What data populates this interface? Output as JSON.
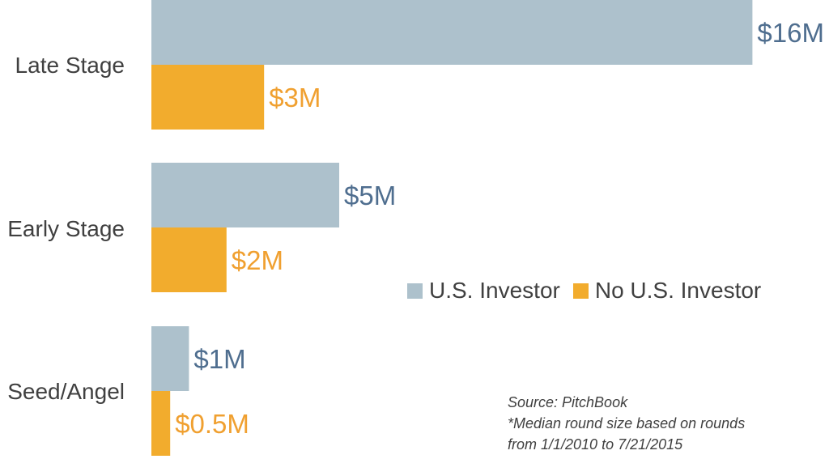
{
  "chart_data": {
    "type": "bar",
    "orientation": "horizontal",
    "categories": [
      "Late Stage",
      "Early Stage",
      "Seed/Angel"
    ],
    "series": [
      {
        "name": "U.S. Investor",
        "values": [
          16,
          5,
          1
        ],
        "labels": [
          "$16M",
          "$5M",
          "$1M"
        ],
        "color": "#adc1cc",
        "label_color": "#4f6e8f"
      },
      {
        "name": "No U.S. Investor",
        "values": [
          3,
          2,
          0.5
        ],
        "labels": [
          "$3M",
          "$2M",
          "$0.5M"
        ],
        "color": "#f2ac2d",
        "label_color": "#f0a030"
      }
    ],
    "unit": "$M",
    "legend_position": "right-center",
    "grid": false
  },
  "notes": {
    "source": "Source: PitchBook",
    "footnote_line1": "*Median round size based on rounds",
    "footnote_line2": "from 1/1/2010 to 7/21/2015"
  }
}
